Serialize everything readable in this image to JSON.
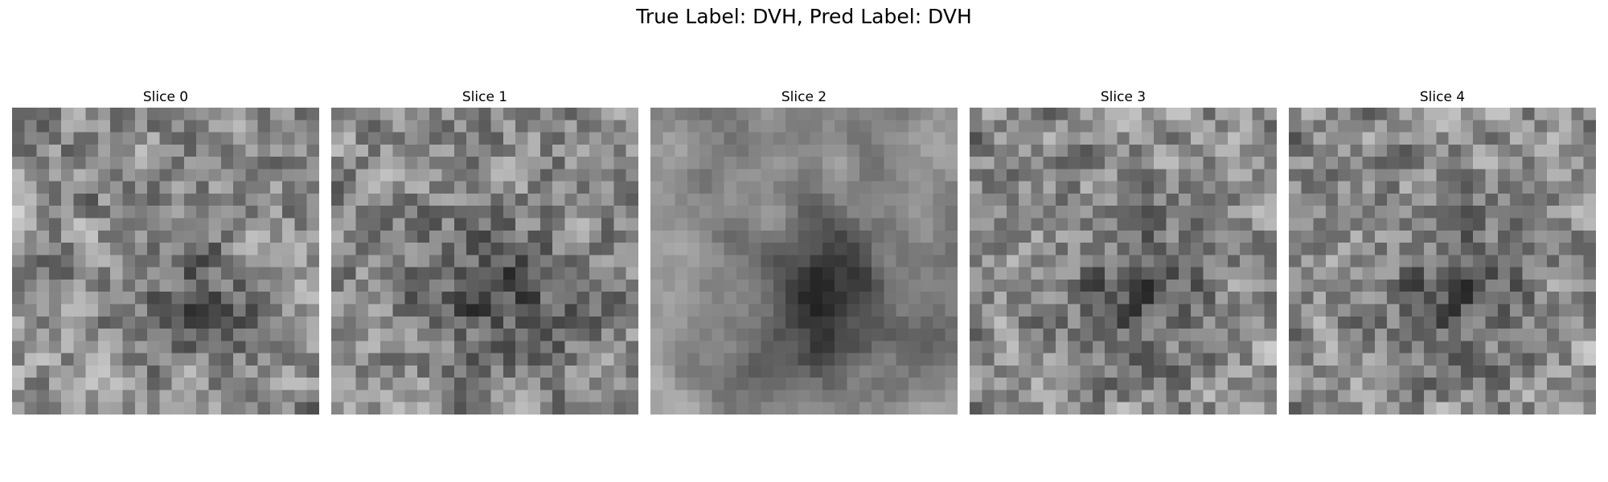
{
  "figure": {
    "title": "True Label: DVH, Pred Label: DVH",
    "colormap": "grayscale",
    "grid_size": 25
  },
  "slices": [
    {
      "title": "Slice 0",
      "seed": 11,
      "smooth": 1,
      "dark_center": 0.15
    },
    {
      "title": "Slice 1",
      "seed": 23,
      "smooth": 1,
      "dark_center": 0.25
    },
    {
      "title": "Slice 2",
      "seed": 37,
      "smooth": 3,
      "dark_center": 0.4
    },
    {
      "title": "Slice 3",
      "seed": 41,
      "smooth": 1,
      "dark_center": 0.2
    },
    {
      "title": "Slice 4",
      "seed": 41,
      "smooth": 1,
      "dark_center": 0.2
    }
  ]
}
